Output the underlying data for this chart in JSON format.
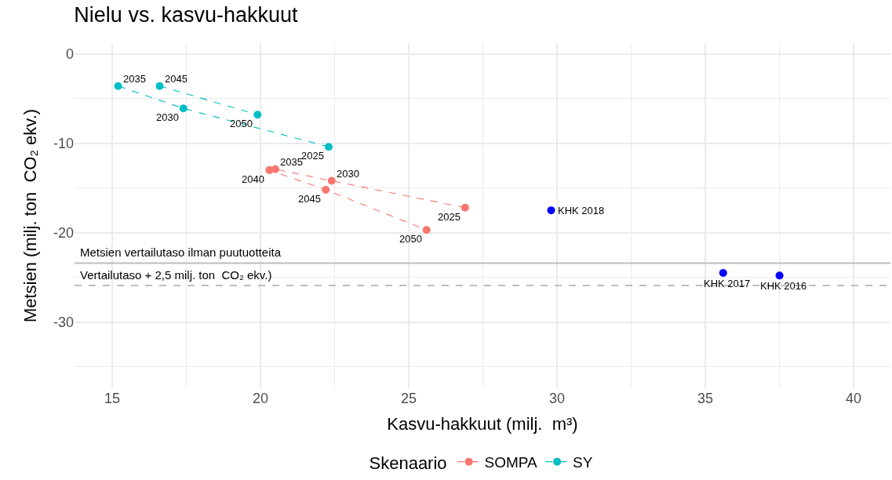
{
  "chart_data": {
    "type": "scatter",
    "title": "Nielu vs. kasvu-hakkuut",
    "xlabel": "Kasvu-hakkuut (milj.  m³)",
    "ylabel": "Metsien (milj. ton  CO₂ ekv.)",
    "legend_title": "Skenaario",
    "series": [
      {
        "name": "SOMPA",
        "color": "#f8766d",
        "type": "line",
        "marker": "circle",
        "line_style": "dashed",
        "x": [
          26.9,
          22.4,
          20.5,
          20.3,
          22.2,
          25.6
        ],
        "values": [
          -17.2,
          -14.2,
          -12.9,
          -13.0,
          -15.2,
          -19.7
        ]
      },
      {
        "name": "SY",
        "color": "#00bfc4",
        "type": "line",
        "marker": "circle",
        "line_style": "dashed",
        "x": [
          22.3,
          17.4,
          15.2,
          null,
          16.6,
          19.9
        ],
        "values": [
          -10.4,
          -6.1,
          -3.6,
          null,
          -3.6,
          -6.8
        ]
      },
      {
        "color": "#0000ff",
        "marker": "circle",
        "x": [
          29.8,
          35.6,
          37.5
        ],
        "values": [
          -17.5,
          -24.5,
          -24.8
        ]
      }
    ],
    "annotations": [
      {
        "text": "2025",
        "x": 26.9,
        "y": -17.2
      },
      {
        "text": "2030",
        "x": 22.4,
        "y": -14.2
      },
      {
        "text": "2035",
        "x": 20.5,
        "y": -12.9
      },
      {
        "text": "2040",
        "x": 20.3,
        "y": -13.0
      },
      {
        "text": "2045",
        "x": 22.2,
        "y": -15.2
      },
      {
        "text": "2050",
        "x": 25.6,
        "y": -19.7
      },
      {
        "text": "2025",
        "x": 22.3,
        "y": -10.4
      },
      {
        "text": "2030",
        "x": 17.4,
        "y": -6.1
      },
      {
        "text": "2035",
        "x": 15.2,
        "y": -3.6
      },
      {
        "text": "2045",
        "x": 16.6,
        "y": -3.6
      },
      {
        "text": "2050",
        "x": 19.9,
        "y": -6.8
      },
      {
        "text": "KHK 2018",
        "x": 29.8,
        "y": -17.5
      },
      {
        "text": "KHK 2017",
        "x": 35.6,
        "y": -24.5
      },
      {
        "text": "KHK 2016",
        "x": 37.5,
        "y": -24.8
      }
    ],
    "ref_lines": [
      {
        "axis": "y",
        "value": -23.4,
        "label": "Metsien vertailutaso ilman puutuotteita",
        "color": "#bdbdbd",
        "line_style": "solid"
      },
      {
        "axis": "y",
        "value": -25.9,
        "label": "Vertailutaso + 2,5 milj. ton  CO₂ ekv.)",
        "color": "#bdbdbd",
        "line_style": "dashed"
      }
    ],
    "xlim": [
      13.73,
      41.24
    ],
    "xticks": [
      15,
      20,
      25,
      30,
      35,
      40
    ],
    "ylim": [
      -37.4,
      1.2
    ],
    "yticks": [
      0,
      -10,
      -20,
      -30
    ],
    "grid": true,
    "legend": "bottom"
  }
}
